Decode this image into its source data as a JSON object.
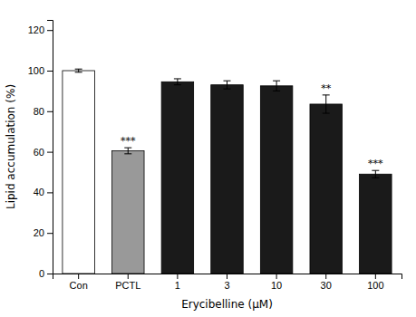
{
  "chart_data": {
    "type": "bar",
    "categories": [
      "Con",
      "PCTL",
      "1",
      "3",
      "10",
      "30",
      "100"
    ],
    "values": [
      100.0,
      60.5,
      94.5,
      93.0,
      92.5,
      83.5,
      49.0
    ],
    "errors": [
      0.8,
      1.5,
      1.5,
      2.0,
      2.5,
      4.5,
      1.8
    ],
    "colors": [
      "#ffffff",
      "#999999",
      "#1a1a1a",
      "#1a1a1a",
      "#1a1a1a",
      "#1a1a1a",
      "#1a1a1a"
    ],
    "significance": [
      null,
      "***",
      null,
      null,
      null,
      "**",
      "***"
    ],
    "xlabel": "Erycibelline (μM)",
    "ylabel": "Lipid accumulation (%)",
    "ylim": [
      0,
      125
    ],
    "yticks": [
      0,
      20,
      40,
      60,
      80,
      100,
      120
    ],
    "grid": false
  }
}
